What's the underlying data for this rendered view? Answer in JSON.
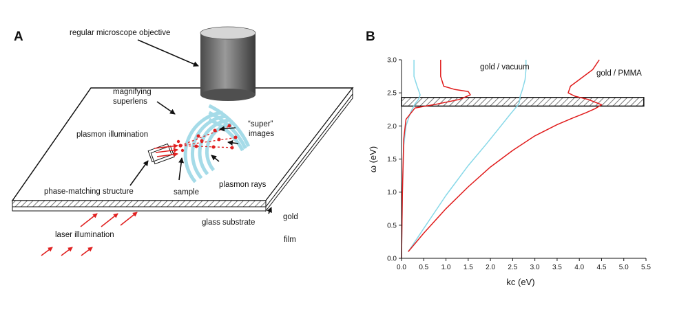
{
  "panel_a": {
    "letter": "A",
    "labels": {
      "objective": "regular microscope objective",
      "magnifying_1": "magnifying",
      "magnifying_2": "superlens",
      "plasmon_illumination": "plasmon illumination",
      "super_1": "“super”",
      "super_2": "images",
      "phase_matching": "phase-matching structure",
      "sample": "sample",
      "plasmon_rays": "plasmon rays",
      "glass_substrate": "glass substrate",
      "gold": "gold",
      "film": "film",
      "laser_illumination": "laser illumination"
    },
    "colors": {
      "laser": "#e02020",
      "lens": "#9fd8e6",
      "objective": "#777777"
    }
  },
  "panel_b": {
    "letter": "B",
    "curve_labels": {
      "vacuum": "gold / vacuum",
      "pmma": "gold / PMMA"
    },
    "colors": {
      "red": "#e01b1b",
      "cyan": "#87d8e8",
      "band": "#bdbdbd"
    }
  },
  "chart_data": {
    "type": "line",
    "xlabel": "kc (eV)",
    "ylabel": "ω (eV)",
    "xlim": [
      0.0,
      5.5
    ],
    "ylim": [
      0.0,
      3.0
    ],
    "xticks": [
      "0.0",
      "0.5",
      "1.0",
      "1.5",
      "2.0",
      "2.5",
      "3.0",
      "3.5",
      "4.0",
      "4.5",
      "5.0",
      "5.5"
    ],
    "yticks": [
      "0.0",
      "0.5",
      "1.0",
      "1.5",
      "2.0",
      "2.5",
      "3.0"
    ],
    "band": {
      "y": [
        2.3,
        2.43
      ],
      "x": [
        0.0,
        5.45
      ]
    },
    "series": [
      {
        "name": "gold / vacuum",
        "role": "dispersion",
        "color": "#87d8e8",
        "x": [
          0.15,
          0.5,
          1.0,
          1.5,
          1.9,
          2.2,
          2.45,
          2.6,
          2.65,
          2.67,
          2.72,
          2.78,
          2.8,
          2.8
        ],
        "y": [
          0.1,
          0.45,
          0.95,
          1.4,
          1.72,
          1.97,
          2.18,
          2.3,
          2.35,
          2.45,
          2.55,
          2.7,
          2.85,
          3.0
        ]
      },
      {
        "name": "gold / PMMA",
        "role": "dispersion",
        "color": "#e01b1b",
        "x": [
          0.15,
          0.5,
          1.0,
          1.5,
          2.0,
          2.5,
          3.0,
          3.5,
          3.85,
          4.15,
          4.35,
          4.5,
          4.2,
          3.9,
          3.75,
          3.8,
          4.0,
          4.3,
          4.45
        ],
        "y": [
          0.1,
          0.38,
          0.75,
          1.08,
          1.38,
          1.63,
          1.85,
          2.02,
          2.12,
          2.2,
          2.26,
          2.32,
          2.4,
          2.45,
          2.5,
          2.6,
          2.7,
          2.85,
          3.0
        ]
      },
      {
        "name": "",
        "role": "loss-vacuum",
        "color": "#87d8e8",
        "x": [
          0.0,
          0.02,
          0.05,
          0.1,
          0.2,
          0.3,
          0.38,
          0.42,
          0.35,
          0.28,
          0.28
        ],
        "y": [
          0.0,
          1.0,
          1.7,
          2.0,
          2.2,
          2.33,
          2.4,
          2.47,
          2.6,
          2.75,
          3.0
        ]
      },
      {
        "name": "",
        "role": "loss-pmma",
        "color": "#e01b1b",
        "x": [
          0.0,
          0.02,
          0.05,
          0.1,
          0.3,
          0.8,
          1.3,
          1.55,
          1.5,
          1.2,
          0.95,
          0.88,
          0.88
        ],
        "y": [
          0.0,
          1.0,
          1.8,
          2.1,
          2.27,
          2.33,
          2.4,
          2.47,
          2.52,
          2.55,
          2.6,
          2.75,
          3.0
        ]
      }
    ]
  }
}
